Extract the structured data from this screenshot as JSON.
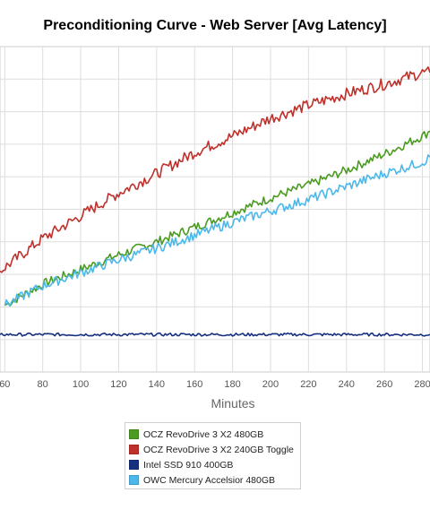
{
  "chart_data": {
    "type": "line",
    "title": "Preconditioning Curve - Web Server [Avg Latency]",
    "xlabel": "Minutes",
    "ylabel": "",
    "x_ticks": [
      60,
      80,
      100,
      120,
      140,
      160,
      180,
      200,
      220,
      240,
      260,
      280
    ],
    "xlim": [
      57.5,
      284
    ],
    "ylim": [
      0,
      100
    ],
    "y_gridlines": [
      10,
      20,
      30,
      40,
      50,
      60,
      70,
      80,
      90
    ],
    "grid": true,
    "legend_position": "bottom",
    "series": [
      {
        "name": "OCZ RevoDrive 3 X2 480GB",
        "color": "#4a9b1f",
        "x": [
          60,
          80,
          100,
          120,
          140,
          160,
          180,
          200,
          220,
          240,
          260,
          280,
          284
        ],
        "values": [
          20.5,
          27.0,
          31.5,
          36.0,
          40.0,
          44.5,
          49.0,
          53.5,
          57.5,
          62.0,
          67.0,
          72.5,
          74.0
        ]
      },
      {
        "name": "OCZ RevoDrive 3 X2 240GB Toggle",
        "color": "#c0302b",
        "x": [
          57.5,
          80,
          100,
          120,
          140,
          160,
          180,
          200,
          220,
          240,
          260,
          280,
          284
        ],
        "values": [
          31.0,
          41.0,
          48.0,
          55.0,
          61.0,
          67.5,
          72.5,
          78.0,
          82.0,
          85.5,
          88.5,
          92.0,
          92.0
        ]
      },
      {
        "name": "Intel SSD 910 400GB",
        "color": "#162f7f",
        "x": [
          57.5,
          80,
          100,
          120,
          140,
          160,
          180,
          200,
          220,
          240,
          260,
          280,
          284
        ],
        "values": [
          11.5,
          11.5,
          11.5,
          11.5,
          11.5,
          11.5,
          11.5,
          11.5,
          11.5,
          11.5,
          11.5,
          11.5,
          11.5
        ]
      },
      {
        "name": "OWC Mercury Accelsior 480GB",
        "color": "#4cb8ea",
        "x": [
          60,
          80,
          100,
          120,
          140,
          160,
          180,
          200,
          220,
          240,
          260,
          280,
          284
        ],
        "values": [
          20.5,
          26.5,
          30.5,
          34.5,
          38.0,
          42.0,
          46.0,
          49.5,
          53.0,
          57.0,
          61.0,
          64.5,
          66.0
        ]
      }
    ]
  }
}
